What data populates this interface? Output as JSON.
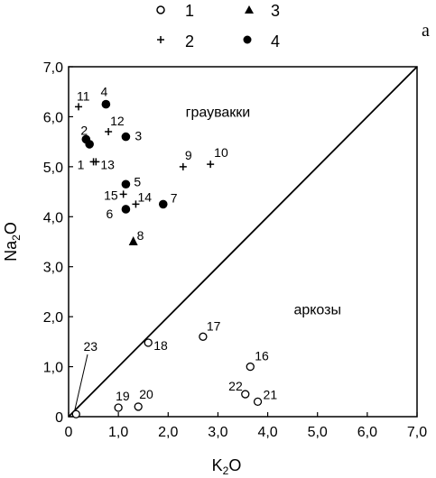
{
  "chart_data": {
    "type": "scatter",
    "panel_label": "a",
    "xlabel": "K2O",
    "ylabel": "Na2O",
    "xlim": [
      0,
      7
    ],
    "ylim": [
      0,
      7
    ],
    "x_ticks": [
      "0",
      "1,0",
      "2,0",
      "3,0",
      "4,0",
      "5,0",
      "6,0",
      "7,0"
    ],
    "y_ticks": [
      "0",
      "1,0",
      "2,0",
      "3,0",
      "4,0",
      "5,0",
      "6,0",
      "7,0"
    ],
    "divider_line": {
      "from": [
        0,
        0
      ],
      "to": [
        7,
        7
      ]
    },
    "regions": [
      {
        "label": "граувакки",
        "x": 3.0,
        "y": 6.0
      },
      {
        "label": "аркозы",
        "x": 5.0,
        "y": 2.05
      }
    ],
    "legend": [
      {
        "id": "1",
        "marker": "open-circle"
      },
      {
        "id": "2",
        "marker": "plus"
      },
      {
        "id": "3",
        "marker": "triangle"
      },
      {
        "id": "4",
        "marker": "filled-circle"
      }
    ],
    "series": [
      {
        "name": "1",
        "marker": "open-circle",
        "points": [
          {
            "label": "16",
            "x": 3.65,
            "y": 1.0
          },
          {
            "label": "17",
            "x": 2.7,
            "y": 1.6
          },
          {
            "label": "18",
            "x": 1.6,
            "y": 1.48
          },
          {
            "label": "19",
            "x": 1.0,
            "y": 0.18
          },
          {
            "label": "20",
            "x": 1.4,
            "y": 0.2
          },
          {
            "label": "21",
            "x": 3.8,
            "y": 0.3
          },
          {
            "label": "22",
            "x": 3.55,
            "y": 0.45
          },
          {
            "label": "23",
            "x": 0.15,
            "y": 0.05
          }
        ]
      },
      {
        "name": "2",
        "marker": "plus",
        "points": [
          {
            "label": "1",
            "x": 0.5,
            "y": 5.1
          },
          {
            "label": "9",
            "x": 2.3,
            "y": 5.0
          },
          {
            "label": "10",
            "x": 2.85,
            "y": 5.05
          },
          {
            "label": "11",
            "x": 0.2,
            "y": 6.2
          },
          {
            "label": "12",
            "x": 0.8,
            "y": 5.7
          },
          {
            "label": "13",
            "x": 0.55,
            "y": 5.1
          },
          {
            "label": "14",
            "x": 1.35,
            "y": 4.25
          },
          {
            "label": "15",
            "x": 1.1,
            "y": 4.45
          }
        ]
      },
      {
        "name": "3",
        "marker": "triangle",
        "points": [
          {
            "label": "8",
            "x": 1.3,
            "y": 3.5
          }
        ]
      },
      {
        "name": "4",
        "marker": "filled-circle",
        "points": [
          {
            "label": "2",
            "x": 0.35,
            "y": 5.55
          },
          {
            "label": "",
            "x": 0.42,
            "y": 5.45
          },
          {
            "label": "3",
            "x": 1.15,
            "y": 5.6
          },
          {
            "label": "4",
            "x": 0.75,
            "y": 6.25
          },
          {
            "label": "5",
            "x": 1.15,
            "y": 4.65
          },
          {
            "label": "6",
            "x": 1.15,
            "y": 4.15
          },
          {
            "label": "7",
            "x": 1.9,
            "y": 4.25
          }
        ]
      }
    ]
  }
}
